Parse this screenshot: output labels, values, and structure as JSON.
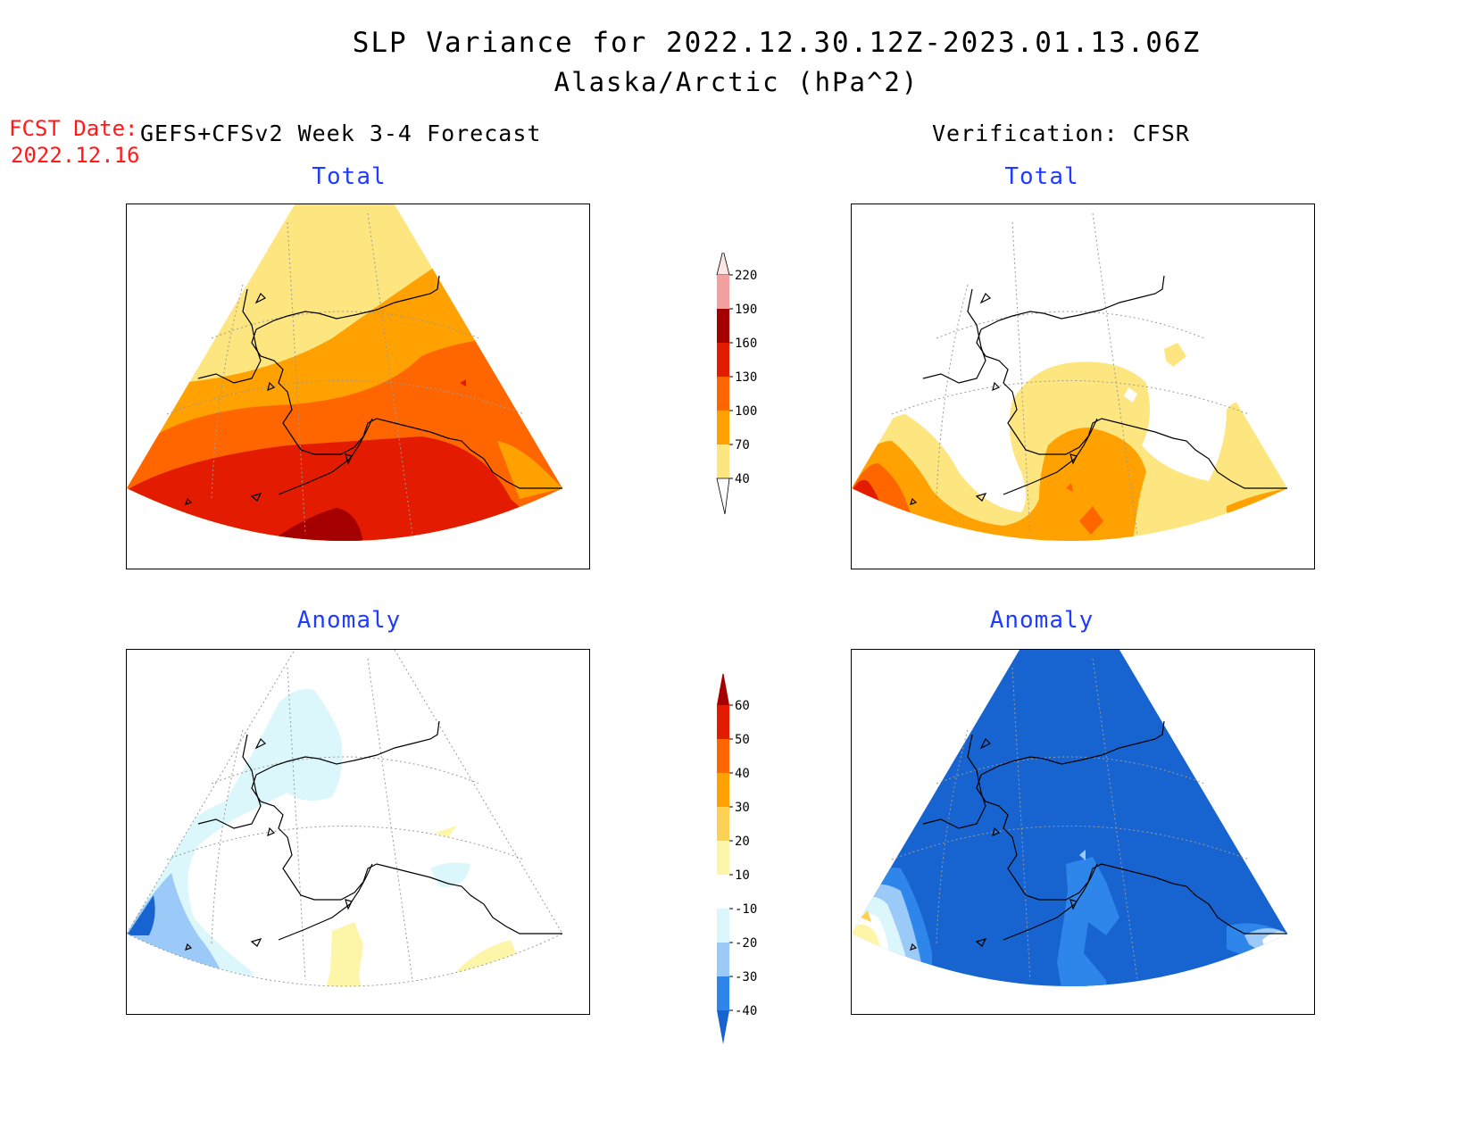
{
  "title": {
    "line1": "SLP Variance for 2022.12.30.12Z-2023.01.13.06Z",
    "line2": "Alaska/Arctic (hPa^2)"
  },
  "fcst": {
    "label": "FCST Date:",
    "date": "2022.12.16"
  },
  "headers": {
    "left": "GEFS+CFSv2 Week 3-4 Forecast",
    "right": "Verification: CFSR"
  },
  "panels": {
    "forecast_total": {
      "title": "Total"
    },
    "verification_total": {
      "title": "Total"
    },
    "forecast_anomaly": {
      "title": "Anomaly"
    },
    "verification_anomaly": {
      "title": "Anomaly"
    }
  },
  "colorbars": {
    "total": {
      "labels": [
        "40",
        "70",
        "100",
        "130",
        "160",
        "190",
        "220"
      ],
      "colors": [
        "#fde680",
        "#ffa100",
        "#ff6600",
        "#e31b00",
        "#a50000",
        "#f2a0a0",
        "#fde6e6"
      ]
    },
    "anomaly": {
      "labels": [
        "-40",
        "-30",
        "-20",
        "-10",
        "10",
        "20",
        "30",
        "40",
        "50",
        "60"
      ],
      "colors": [
        "#1764d0",
        "#2f86ea",
        "#9ccaf8",
        "#dcf7fb",
        "#ffffff",
        "#fdf6a8",
        "#fdd153",
        "#ffa100",
        "#ff6600",
        "#e31b00",
        "#a50000"
      ]
    }
  },
  "map_colors": {
    "land_outline": "#000000",
    "grid": "#8a8a8a"
  }
}
